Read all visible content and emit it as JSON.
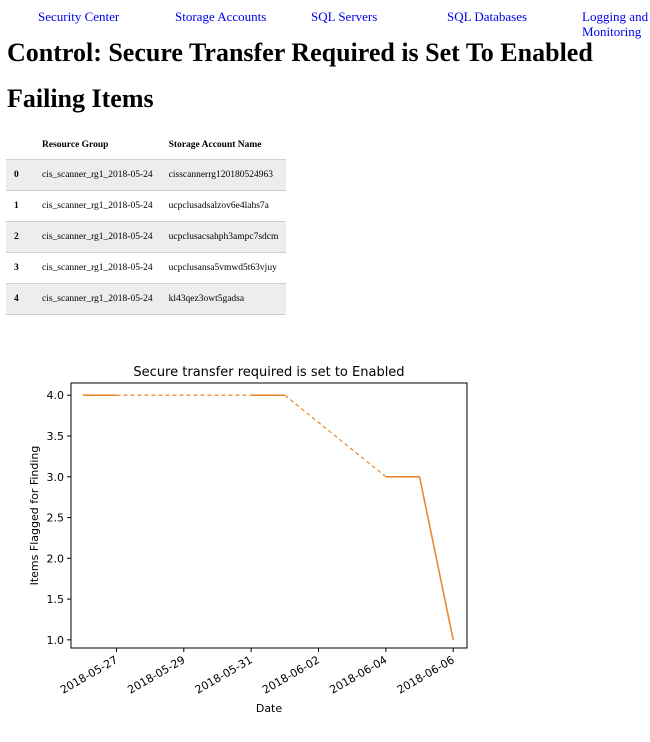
{
  "nav": {
    "items": [
      "Security Center",
      "Storage Accounts",
      "SQL Servers",
      "SQL Databases",
      "Logging and Monitoring"
    ]
  },
  "page": {
    "title": "Control: Secure Transfer Required is Set To Enabled",
    "subtitle": "Failing Items"
  },
  "table": {
    "columns": [
      "",
      "Resource Group",
      "Storage Account Name"
    ],
    "rows": [
      {
        "index": "0",
        "resource_group": "cis_scanner_rg1_2018-05-24",
        "storage_account": "cisscannerrg120180524963"
      },
      {
        "index": "1",
        "resource_group": "cis_scanner_rg1_2018-05-24",
        "storage_account": "ucpclusadsalzov6e4lahs7a"
      },
      {
        "index": "2",
        "resource_group": "cis_scanner_rg1_2018-05-24",
        "storage_account": "ucpclusacsahph3ampc7sdcm"
      },
      {
        "index": "3",
        "resource_group": "cis_scanner_rg1_2018-05-24",
        "storage_account": "ucpclusansa5vmwd5t63vjuy"
      },
      {
        "index": "4",
        "resource_group": "cis_scanner_rg1_2018-05-24",
        "storage_account": "kl43qez3owt5gadsa"
      }
    ]
  },
  "chart_data": {
    "type": "line",
    "title": "Secure transfer required is set to Enabled",
    "xlabel": "Date",
    "ylabel": "Items Flagged for Finding",
    "xlim": [
      "2018-05-26",
      "2018-06-06"
    ],
    "ylim": [
      0.9,
      4.15
    ],
    "xticks": [
      "2018-05-27",
      "2018-05-29",
      "2018-05-31",
      "2018-06-02",
      "2018-06-04",
      "2018-06-06"
    ],
    "yticks": [
      "1.0",
      "1.5",
      "2.0",
      "2.5",
      "3.0",
      "3.5",
      "4.0"
    ],
    "grid": false,
    "color": "#e8892e",
    "series": [
      {
        "points": [
          {
            "x": "2018-05-26",
            "y": 4
          },
          {
            "x": "2018-05-27",
            "y": 4
          },
          {
            "x": "2018-05-31",
            "y": 4
          },
          {
            "x": "2018-06-01",
            "y": 4
          },
          {
            "x": "2018-06-04",
            "y": 3
          },
          {
            "x": "2018-06-05",
            "y": 3
          },
          {
            "x": "2018-06-06",
            "y": 1
          }
        ],
        "segment_styles": [
          "solid",
          "dashed",
          "solid",
          "dashed",
          "solid",
          "solid"
        ]
      }
    ]
  }
}
